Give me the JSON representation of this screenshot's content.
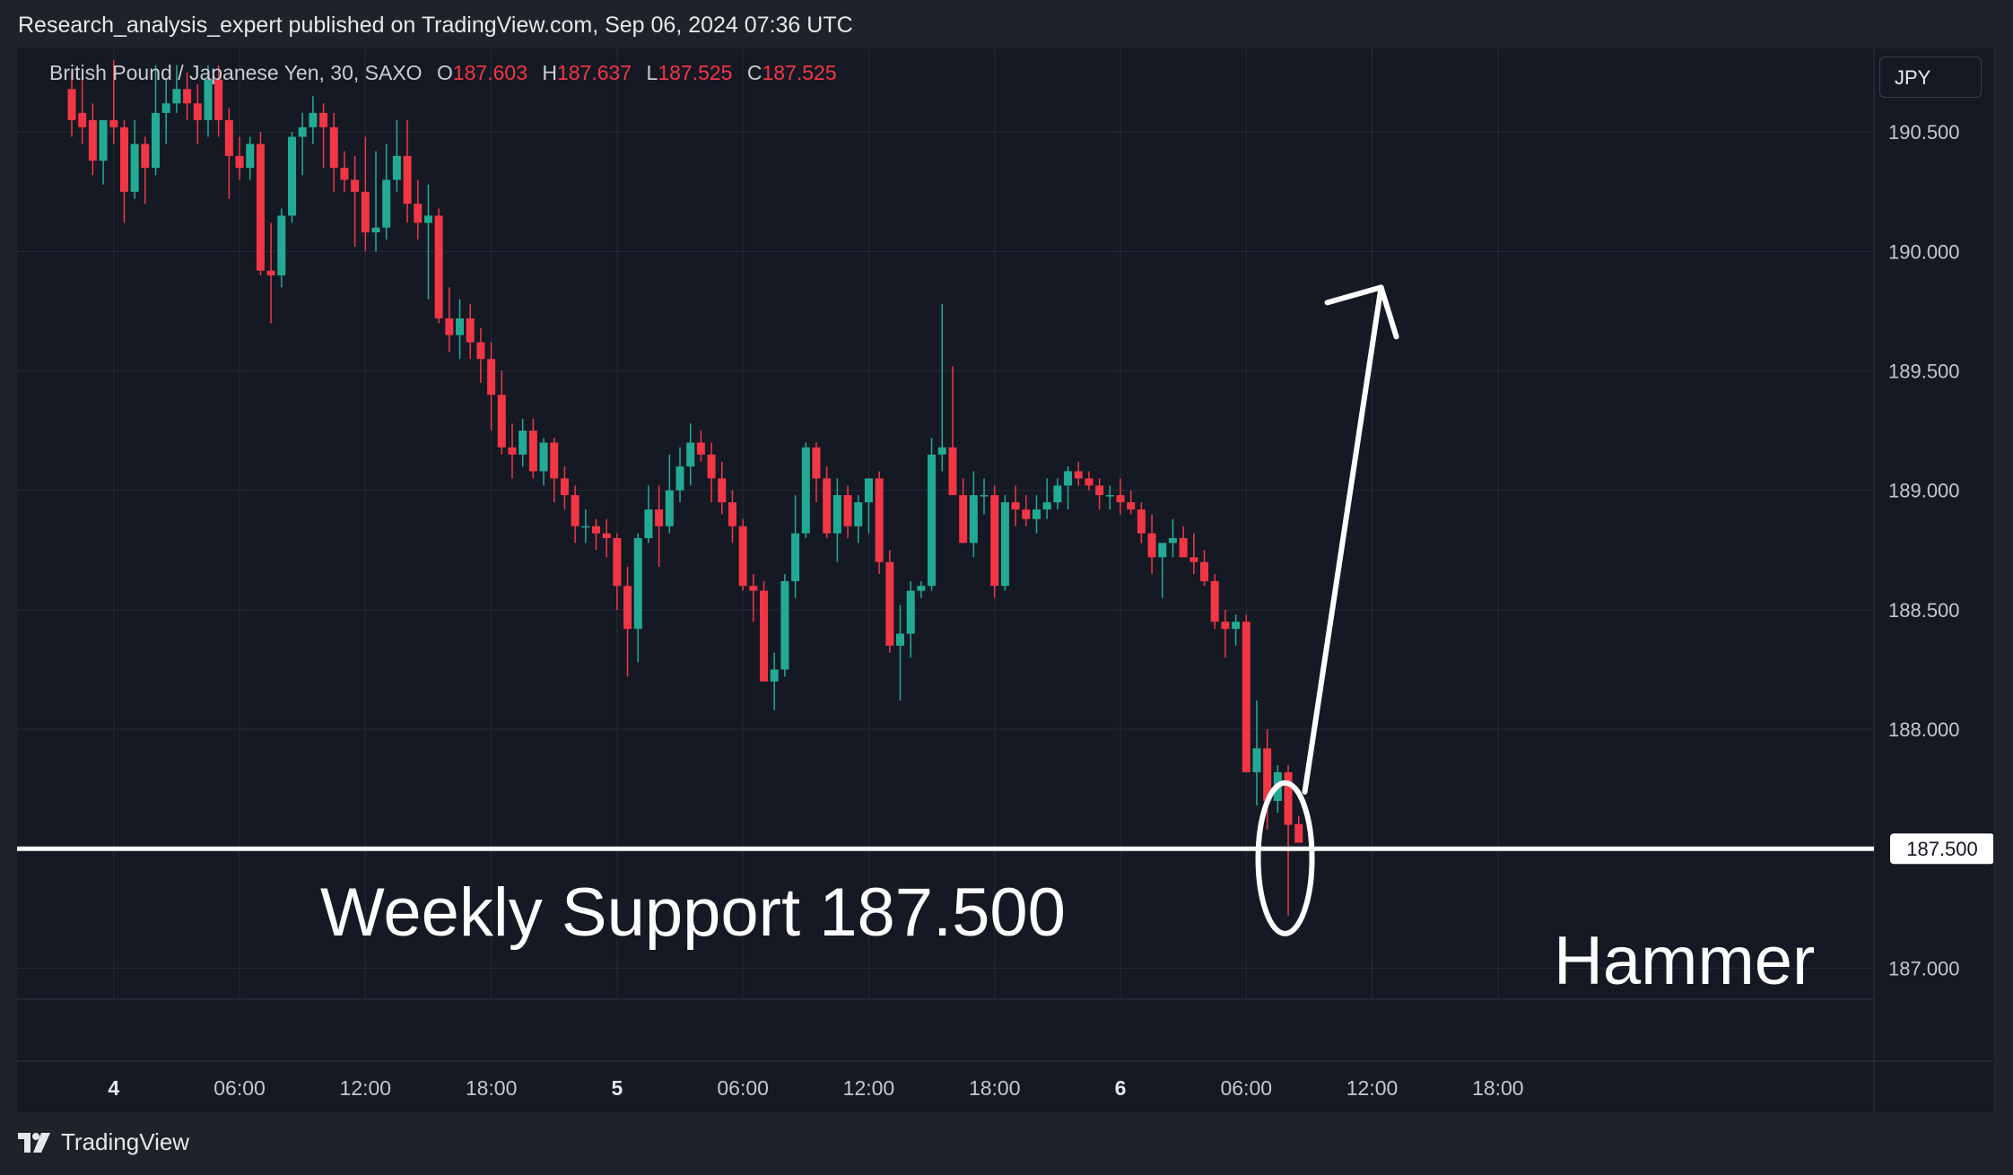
{
  "header": {
    "publisher_text": "Research_analysis_expert published on TradingView.com, Sep 06, 2024 07:36 UTC"
  },
  "legend": {
    "symbol": "British Pound / Japanese Yen, 30, SAXO",
    "o_label": "O",
    "o_value": "187.603",
    "h_label": "H",
    "h_value": "187.637",
    "l_label": "L",
    "l_value": "187.525",
    "c_label": "C",
    "c_value": "187.525"
  },
  "currency_button": "JPY",
  "footer": {
    "brand": "TradingView",
    "icon": "tradingview-logo-icon"
  },
  "colors": {
    "up": "#22ab94",
    "down": "#f23645",
    "background": "#151924",
    "grid": "#262b37",
    "annotation": "#ffffff"
  },
  "chart_data": {
    "type": "candlestick",
    "interval_minutes": 30,
    "y_axis": {
      "ticks": [
        "190.500",
        "190.000",
        "189.500",
        "189.000",
        "188.500",
        "188.000",
        "187.000"
      ],
      "ylim": [
        186.87,
        190.85
      ]
    },
    "x_axis": {
      "ticks": [
        {
          "label": "4",
          "time": "Sep 04 00:00",
          "bold": true
        },
        {
          "label": "06:00",
          "time": "Sep 04 06:00"
        },
        {
          "label": "12:00",
          "time": "Sep 04 12:00"
        },
        {
          "label": "18:00",
          "time": "Sep 04 18:00"
        },
        {
          "label": "5",
          "time": "Sep 05 00:00",
          "bold": true
        },
        {
          "label": "06:00",
          "time": "Sep 05 06:00"
        },
        {
          "label": "12:00",
          "time": "Sep 05 12:00"
        },
        {
          "label": "18:00",
          "time": "Sep 05 18:00"
        },
        {
          "label": "6",
          "time": "Sep 06 00:00",
          "bold": true
        },
        {
          "label": "06:00",
          "time": "Sep 06 06:00"
        },
        {
          "label": "12:00",
          "time": "Sep 06 12:00"
        },
        {
          "label": "18:00",
          "time": "Sep 06 18:00"
        }
      ]
    },
    "first_candle": "Sep 03 22:00",
    "candles_ohlc": [
      [
        190.68,
        190.75,
        190.48,
        190.55
      ],
      [
        190.58,
        190.75,
        190.45,
        190.52
      ],
      [
        190.55,
        190.62,
        190.32,
        190.38
      ],
      [
        190.38,
        190.55,
        190.28,
        190.55
      ],
      [
        190.55,
        190.8,
        190.45,
        190.52
      ],
      [
        190.52,
        190.55,
        190.12,
        190.25
      ],
      [
        190.25,
        190.55,
        190.22,
        190.45
      ],
      [
        190.45,
        190.48,
        190.2,
        190.35
      ],
      [
        190.35,
        190.78,
        190.32,
        190.58
      ],
      [
        190.58,
        190.72,
        190.45,
        190.62
      ],
      [
        190.62,
        190.78,
        190.58,
        190.68
      ],
      [
        190.68,
        190.75,
        190.55,
        190.62
      ],
      [
        190.62,
        190.7,
        190.45,
        190.55
      ],
      [
        190.55,
        190.78,
        190.48,
        190.72
      ],
      [
        190.72,
        190.78,
        190.48,
        190.55
      ],
      [
        190.55,
        190.6,
        190.22,
        190.4
      ],
      [
        190.4,
        190.48,
        190.3,
        190.35
      ],
      [
        190.35,
        190.48,
        190.3,
        190.45
      ],
      [
        190.45,
        190.5,
        189.9,
        189.92
      ],
      [
        189.92,
        190.12,
        189.7,
        189.9
      ],
      [
        189.9,
        190.18,
        189.85,
        190.15
      ],
      [
        190.15,
        190.5,
        190.12,
        190.48
      ],
      [
        190.48,
        190.58,
        190.32,
        190.52
      ],
      [
        190.52,
        190.65,
        190.45,
        190.58
      ],
      [
        190.58,
        190.62,
        190.35,
        190.52
      ],
      [
        190.52,
        190.58,
        190.25,
        190.35
      ],
      [
        190.35,
        190.42,
        190.25,
        190.3
      ],
      [
        190.3,
        190.4,
        190.02,
        190.25
      ],
      [
        190.25,
        190.48,
        190.0,
        190.08
      ],
      [
        190.08,
        190.42,
        190.0,
        190.1
      ],
      [
        190.1,
        190.45,
        190.05,
        190.3
      ],
      [
        190.3,
        190.55,
        190.25,
        190.4
      ],
      [
        190.4,
        190.55,
        190.12,
        190.2
      ],
      [
        190.2,
        190.3,
        190.05,
        190.12
      ],
      [
        190.12,
        190.28,
        189.8,
        190.15
      ],
      [
        190.15,
        190.18,
        189.7,
        189.72
      ],
      [
        189.72,
        189.85,
        189.58,
        189.65
      ],
      [
        189.65,
        189.8,
        189.55,
        189.72
      ],
      [
        189.72,
        189.78,
        189.55,
        189.62
      ],
      [
        189.62,
        189.68,
        189.45,
        189.55
      ],
      [
        189.55,
        189.62,
        189.25,
        189.4
      ],
      [
        189.4,
        189.5,
        189.15,
        189.18
      ],
      [
        189.18,
        189.28,
        189.05,
        189.15
      ],
      [
        189.15,
        189.3,
        189.1,
        189.25
      ],
      [
        189.25,
        189.3,
        189.05,
        189.08
      ],
      [
        189.08,
        189.22,
        189.02,
        189.2
      ],
      [
        189.2,
        189.22,
        188.95,
        189.05
      ],
      [
        189.05,
        189.1,
        188.92,
        188.98
      ],
      [
        188.98,
        189.02,
        188.78,
        188.85
      ],
      [
        188.85,
        188.92,
        188.78,
        188.85
      ],
      [
        188.85,
        188.88,
        188.75,
        188.82
      ],
      [
        188.82,
        188.88,
        188.72,
        188.8
      ],
      [
        188.8,
        188.82,
        188.5,
        188.6
      ],
      [
        188.6,
        188.68,
        188.22,
        188.42
      ],
      [
        188.42,
        188.82,
        188.28,
        188.8
      ],
      [
        188.8,
        189.02,
        188.78,
        188.92
      ],
      [
        188.92,
        189.02,
        188.68,
        188.85
      ],
      [
        188.85,
        189.15,
        188.82,
        189.0
      ],
      [
        189.0,
        189.18,
        188.95,
        189.1
      ],
      [
        189.1,
        189.28,
        189.02,
        189.2
      ],
      [
        189.2,
        189.25,
        189.12,
        189.15
      ],
      [
        189.15,
        189.2,
        188.95,
        189.05
      ],
      [
        189.05,
        189.12,
        188.9,
        188.95
      ],
      [
        188.95,
        189.0,
        188.78,
        188.85
      ],
      [
        188.85,
        188.88,
        188.58,
        188.6
      ],
      [
        188.6,
        188.65,
        188.45,
        188.58
      ],
      [
        188.58,
        188.62,
        188.2,
        188.2
      ],
      [
        188.2,
        188.32,
        188.08,
        188.25
      ],
      [
        188.25,
        188.65,
        188.22,
        188.62
      ],
      [
        188.62,
        188.98,
        188.55,
        188.82
      ],
      [
        188.82,
        189.2,
        188.8,
        189.18
      ],
      [
        189.18,
        189.2,
        188.95,
        189.05
      ],
      [
        189.05,
        189.1,
        188.8,
        188.82
      ],
      [
        188.82,
        189.05,
        188.7,
        188.98
      ],
      [
        188.98,
        189.02,
        188.8,
        188.85
      ],
      [
        188.85,
        188.98,
        188.78,
        188.95
      ],
      [
        188.95,
        189.05,
        188.82,
        189.05
      ],
      [
        189.05,
        189.08,
        188.65,
        188.7
      ],
      [
        188.7,
        188.75,
        188.32,
        188.35
      ],
      [
        188.35,
        188.52,
        188.12,
        188.4
      ],
      [
        188.4,
        188.62,
        188.3,
        188.58
      ],
      [
        188.58,
        188.62,
        188.55,
        188.6
      ],
      [
        188.6,
        189.22,
        188.58,
        189.15
      ],
      [
        189.15,
        189.78,
        189.08,
        189.18
      ],
      [
        189.18,
        189.52,
        188.98,
        188.98
      ],
      [
        188.98,
        189.05,
        188.8,
        188.78
      ],
      [
        188.78,
        189.08,
        188.72,
        188.98
      ],
      [
        188.98,
        189.05,
        188.9,
        188.98
      ],
      [
        188.98,
        189.02,
        188.55,
        188.6
      ],
      [
        188.6,
        188.98,
        188.58,
        188.95
      ],
      [
        188.95,
        189.02,
        188.85,
        188.92
      ],
      [
        188.92,
        188.98,
        188.85,
        188.88
      ],
      [
        188.88,
        188.98,
        188.82,
        188.92
      ],
      [
        188.92,
        189.05,
        188.88,
        188.95
      ],
      [
        188.95,
        189.05,
        188.92,
        189.02
      ],
      [
        189.02,
        189.1,
        188.92,
        189.08
      ],
      [
        189.08,
        189.12,
        189.02,
        189.05
      ],
      [
        189.05,
        189.08,
        189.0,
        189.02
      ],
      [
        189.02,
        189.05,
        188.92,
        188.98
      ],
      [
        188.98,
        189.02,
        188.92,
        188.98
      ],
      [
        188.98,
        189.05,
        188.9,
        188.95
      ],
      [
        188.95,
        189.0,
        188.9,
        188.92
      ],
      [
        188.92,
        188.95,
        188.78,
        188.82
      ],
      [
        188.82,
        188.9,
        188.65,
        188.72
      ],
      [
        188.72,
        188.78,
        188.55,
        188.78
      ],
      [
        188.78,
        188.88,
        188.72,
        188.8
      ],
      [
        188.8,
        188.85,
        188.72,
        188.72
      ],
      [
        188.72,
        188.82,
        188.65,
        188.7
      ],
      [
        188.7,
        188.75,
        188.6,
        188.62
      ],
      [
        188.62,
        188.65,
        188.42,
        188.45
      ],
      [
        188.45,
        188.5,
        188.3,
        188.42
      ],
      [
        188.42,
        188.48,
        188.35,
        188.45
      ],
      [
        188.45,
        188.48,
        187.82,
        187.82
      ],
      [
        187.82,
        188.12,
        187.68,
        187.92
      ],
      [
        187.92,
        188.0,
        187.58,
        187.7
      ],
      [
        187.7,
        187.85,
        187.65,
        187.82
      ],
      [
        187.82,
        187.85,
        187.22,
        187.6
      ],
      [
        187.603,
        187.637,
        187.525,
        187.525
      ]
    ],
    "annotations": [
      {
        "type": "horizontal-line",
        "price": 187.5,
        "label": "Weekly Support 187.500"
      },
      {
        "type": "ellipse",
        "label": "Hammer"
      },
      {
        "type": "arrow",
        "direction": "up",
        "to_price": 189.85,
        "to_time": "Sep 06 12:00"
      }
    ],
    "price_label": "187.500"
  }
}
